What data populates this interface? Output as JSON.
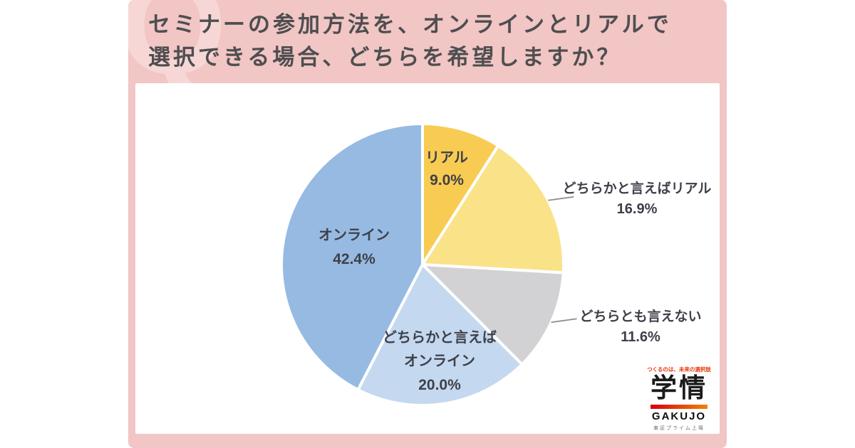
{
  "header": {
    "question": "セミナーの参加方法を、オンラインとリアルで\n選択できる場合、どちらを希望しますか？",
    "watermark_letter": "Q"
  },
  "chart_data": {
    "type": "pie",
    "title": "セミナーの参加方法を、オンラインとリアルで選択できる場合、どちらを希望しますか？",
    "unit": "%",
    "direction": "clockwise",
    "start_angle_deg": 0,
    "legend_position": "none",
    "slices": [
      {
        "label": "リアル",
        "value": 9.0,
        "display": "9.0%",
        "color": "#F8CB52",
        "label_lines": [
          "リアル"
        ],
        "label_placement": "inside"
      },
      {
        "label": "どちらかと言えばリアル",
        "value": 16.9,
        "display": "16.9%",
        "color": "#FAE289",
        "label_lines": [
          "どちらかと言えばリアル"
        ],
        "label_placement": "outside"
      },
      {
        "label": "どちらとも言えない",
        "value": 11.6,
        "display": "11.6%",
        "color": "#D2D2D4",
        "label_lines": [
          "どちらとも言えない"
        ],
        "label_placement": "outside"
      },
      {
        "label": "どちらかと言えばオンライン",
        "value": 20.0,
        "display": "20.0%",
        "color": "#C4D8EF",
        "label_lines": [
          "どちらかと言えば",
          "オンライン"
        ],
        "label_placement": "inside"
      },
      {
        "label": "オンライン",
        "value": 42.4,
        "display": "42.4%",
        "color": "#96BAE2",
        "label_lines": [
          "オンライン"
        ],
        "label_placement": "inside"
      }
    ]
  },
  "logo": {
    "tagline": "つくるのは、未来の選択肢",
    "name_kanji": "学情",
    "name_latin": "GAKUJO",
    "listing": "東証プライム上場",
    "accent_gradient": [
      "#D7000F",
      "#F08300"
    ]
  },
  "colors": {
    "card_pink": "#F1C6C5",
    "watermark_pink": "#F6D7D5",
    "panel_white": "#FFFFFF",
    "title_text": "#4E4E50",
    "label_text": "#3E4049",
    "leader_line": "#8C8C8C",
    "slice_gap_white": "#FFFFFF"
  }
}
